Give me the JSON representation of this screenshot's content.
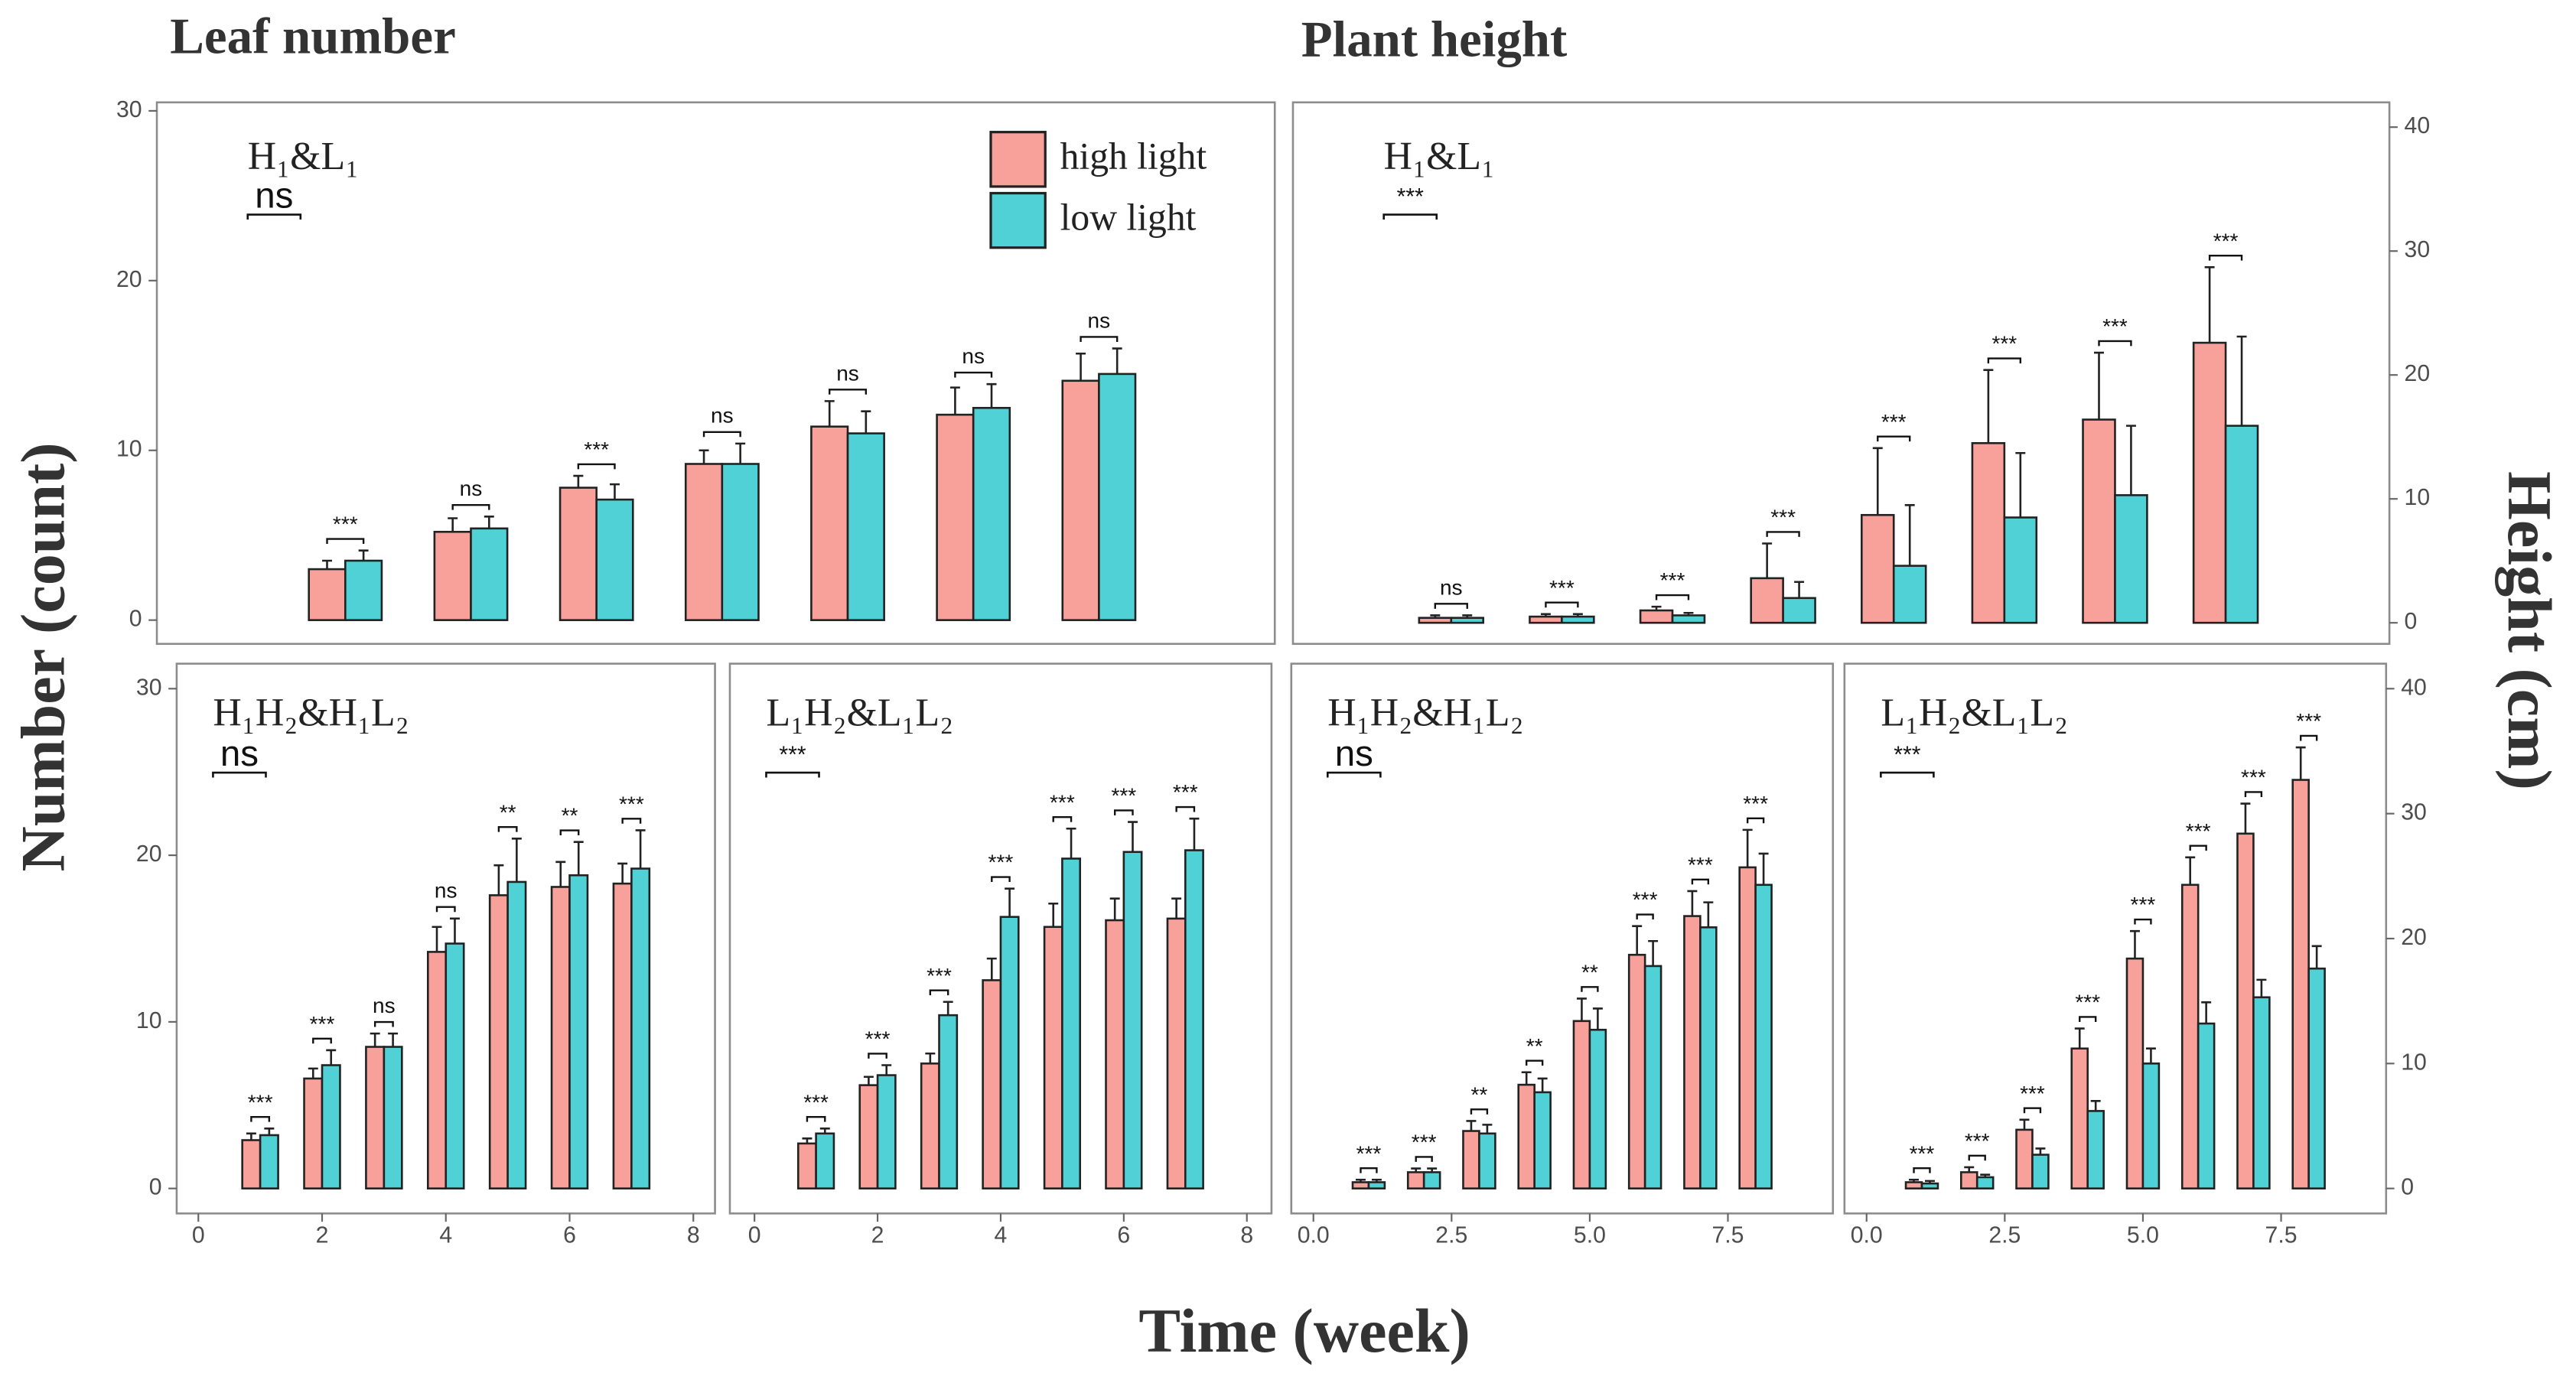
{
  "figure": {
    "leaf_heading": "Leaf number",
    "height_heading": "Plant height",
    "y_label": "Number (count)",
    "y2_label": "Height (cm)",
    "x_label": "Time (week)"
  },
  "chart_data": [
    {
      "type": "bar",
      "title": "H₁&L₁",
      "x": [
        1,
        2,
        3,
        4,
        5,
        6,
        7
      ],
      "series": [
        {
          "name": "high light",
          "color": "#f8a09a",
          "values": [
            3.0,
            5.2,
            7.8,
            9.2,
            11.4,
            12.1,
            14.1
          ],
          "errors": [
            0.5,
            0.8,
            0.7,
            0.8,
            1.5,
            1.6,
            1.6
          ]
        },
        {
          "name": "low light",
          "color": "#4fd1d6",
          "values": [
            3.5,
            5.4,
            7.1,
            9.2,
            11.0,
            12.5,
            14.5
          ],
          "errors": [
            0.6,
            0.7,
            0.9,
            1.2,
            1.3,
            1.4,
            1.5
          ]
        }
      ],
      "significance": [
        "***",
        "ns",
        "***",
        "ns",
        "ns",
        "ns",
        "ns"
      ],
      "overall_significance": "ns",
      "xlim": [
        -0.5,
        8.4
      ],
      "ylim": [
        -1.4,
        30.5
      ],
      "yticks": [
        0,
        10,
        20,
        30
      ],
      "y_axis": "left",
      "legend": "top-right"
    },
    {
      "type": "bar",
      "title": "H₁&L₁",
      "x": [
        1,
        2,
        3,
        4,
        5,
        6,
        7,
        8
      ],
      "series": [
        {
          "color": "#f8a09a",
          "values": [
            0.4,
            0.5,
            1.0,
            3.6,
            8.7,
            14.5,
            16.4,
            22.6
          ],
          "errors": [
            0.2,
            0.2,
            0.3,
            2.8,
            5.4,
            5.9,
            5.4,
            6.1
          ]
        },
        {
          "color": "#4fd1d6",
          "values": [
            0.4,
            0.5,
            0.6,
            2.0,
            4.6,
            8.5,
            10.3,
            15.9
          ],
          "errors": [
            0.2,
            0.2,
            0.2,
            1.3,
            4.9,
            5.2,
            5.6,
            7.2
          ]
        }
      ],
      "significance": [
        "ns",
        "***",
        "***",
        "***",
        "***",
        "***",
        "***",
        "***"
      ],
      "overall_significance": "***",
      "xlim": [
        -0.43,
        9.48
      ],
      "ylim": [
        -1.7,
        42
      ],
      "yticks": [
        0,
        10,
        20,
        30,
        40
      ],
      "y_axis": "right"
    },
    {
      "type": "bar",
      "title": "H₁H₂&H₁L₂",
      "x": [
        1,
        2,
        3,
        4,
        5,
        6,
        7
      ],
      "series": [
        {
          "color": "#f8a09a",
          "values": [
            2.9,
            6.6,
            8.5,
            14.2,
            17.6,
            18.1,
            18.3
          ],
          "errors": [
            0.4,
            0.6,
            0.8,
            1.5,
            1.8,
            1.5,
            1.2
          ]
        },
        {
          "color": "#4fd1d6",
          "values": [
            3.2,
            7.4,
            8.5,
            14.7,
            18.4,
            18.8,
            19.2
          ],
          "errors": [
            0.4,
            0.9,
            0.8,
            1.5,
            2.6,
            2.0,
            2.3
          ]
        }
      ],
      "significance": [
        "***",
        "***",
        "ns",
        "ns",
        "**",
        "**",
        "***"
      ],
      "overall_significance": "ns",
      "xlim": [
        -0.35,
        8.35
      ],
      "xticks": [
        0,
        2,
        4,
        6,
        8
      ],
      "ylim": [
        -1.5,
        31.5
      ],
      "yticks": [
        0,
        10,
        20,
        30
      ],
      "y_axis": "left"
    },
    {
      "type": "bar",
      "title": "L₁H₂&L₁L₂",
      "x": [
        1,
        2,
        3,
        4,
        5,
        6,
        7
      ],
      "series": [
        {
          "color": "#f8a09a",
          "values": [
            2.7,
            6.2,
            7.5,
            12.5,
            15.7,
            16.1,
            16.2
          ],
          "errors": [
            0.3,
            0.5,
            0.6,
            1.3,
            1.4,
            1.3,
            1.2
          ]
        },
        {
          "color": "#4fd1d6",
          "values": [
            3.3,
            6.8,
            10.4,
            16.3,
            19.8,
            20.2,
            20.3
          ],
          "errors": [
            0.3,
            0.6,
            0.8,
            1.7,
            1.8,
            1.8,
            1.9
          ]
        }
      ],
      "significance": [
        "***",
        "***",
        "***",
        "***",
        "***",
        "***",
        "***"
      ],
      "overall_significance": "***",
      "xlim": [
        -0.4,
        8.4
      ],
      "xticks": [
        0,
        2,
        4,
        6,
        8
      ],
      "ylim": [
        -1.5,
        31.5
      ]
    },
    {
      "type": "bar",
      "title": "H₁H₂&H₁L₂",
      "x": [
        1,
        2,
        3,
        4,
        5,
        6,
        7,
        8
      ],
      "series": [
        {
          "color": "#f8a09a",
          "values": [
            0.5,
            1.3,
            4.6,
            8.3,
            13.4,
            18.7,
            21.8,
            25.7
          ],
          "errors": [
            0.2,
            0.3,
            0.8,
            1.0,
            1.8,
            2.3,
            2.0,
            3.0
          ]
        },
        {
          "color": "#4fd1d6",
          "values": [
            0.5,
            1.3,
            4.4,
            7.7,
            12.7,
            17.8,
            20.9,
            24.3
          ],
          "errors": [
            0.2,
            0.3,
            0.7,
            1.1,
            1.7,
            2.0,
            2.0,
            2.5
          ]
        }
      ],
      "significance": [
        "***",
        "***",
        "**",
        "**",
        "**",
        "***",
        "***",
        "***"
      ],
      "overall_significance": "ns",
      "xlim": [
        -0.4,
        9.4
      ],
      "xticks": [
        {
          "value": 0,
          "label": "0.0"
        },
        2.5,
        {
          "value": 5,
          "label": "5.0"
        },
        7.5
      ],
      "ylim": [
        -2,
        42
      ]
    },
    {
      "type": "bar",
      "title": "L₁H₂&L₁L₂",
      "x": [
        1,
        2,
        3,
        4,
        5,
        6,
        7,
        8
      ],
      "series": [
        {
          "color": "#f8a09a",
          "values": [
            0.5,
            1.3,
            4.7,
            11.2,
            18.4,
            24.3,
            28.4,
            32.7
          ],
          "errors": [
            0.2,
            0.4,
            0.8,
            1.6,
            2.2,
            2.2,
            2.4,
            2.6
          ]
        },
        {
          "color": "#4fd1d6",
          "values": [
            0.4,
            0.9,
            2.7,
            6.2,
            10.0,
            13.2,
            15.3,
            17.6
          ],
          "errors": [
            0.2,
            0.2,
            0.5,
            0.8,
            1.2,
            1.7,
            1.4,
            1.8
          ]
        }
      ],
      "significance": [
        "***",
        "***",
        "***",
        "***",
        "***",
        "***",
        "***",
        "***"
      ],
      "overall_significance": "***",
      "xlim": [
        -0.4,
        9.4
      ],
      "xticks": [
        {
          "value": 0,
          "label": "0.0"
        },
        2.5,
        {
          "value": 5,
          "label": "5.0"
        },
        7.5
      ],
      "ylim": [
        -2,
        42
      ],
      "yticks": [
        0,
        10,
        20,
        30,
        40
      ],
      "y_axis": "right"
    }
  ]
}
